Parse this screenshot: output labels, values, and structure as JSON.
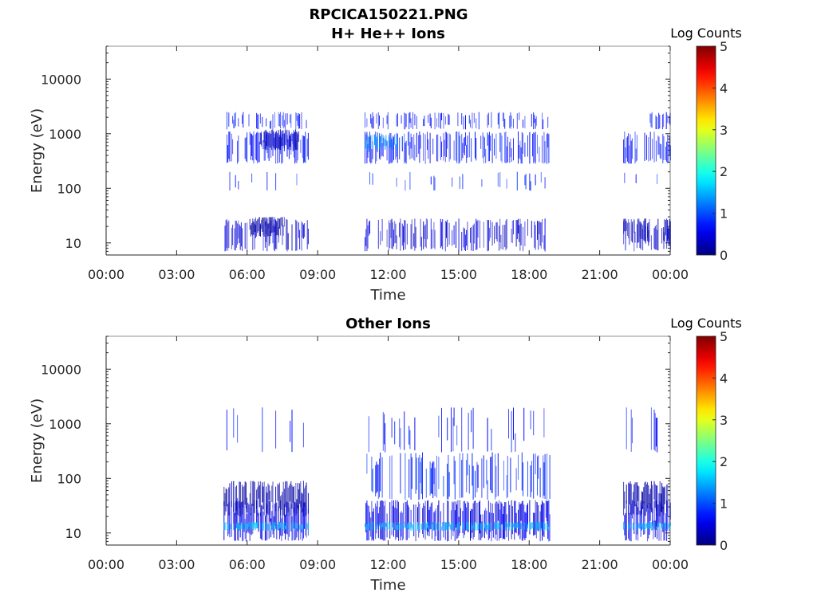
{
  "figure_title": "RPCICA150221.PNG",
  "chart_data": [
    {
      "type": "heatmap",
      "title": "H+ He++ Ions",
      "xlabel": "Time",
      "ylabel": "Energy (eV)",
      "x_ticks": [
        "00:00",
        "03:00",
        "06:00",
        "09:00",
        "12:00",
        "15:00",
        "18:00",
        "21:00",
        "00:00"
      ],
      "x_range_hours": [
        0,
        24
      ],
      "y_scale": "log",
      "y_ticks": [
        "10",
        "100",
        "1000",
        "10000"
      ],
      "y_range": [
        6,
        40000
      ],
      "colorbar": {
        "label": "Log Counts",
        "ticks": [
          "0",
          "1",
          "2",
          "3",
          "4",
          "5"
        ],
        "range": [
          0,
          5
        ],
        "colormap": "jet"
      },
      "data_intervals_hours": [
        [
          5.0,
          8.6
        ],
        [
          11.0,
          18.9
        ],
        [
          22.0,
          24.0
        ]
      ],
      "bands": [
        {
          "intervals": [
            [
              5.0,
              8.6
            ],
            [
              11.0,
              18.9
            ],
            [
              22.0,
              24.0
            ]
          ],
          "energy_eV": [
            7,
            28
          ],
          "log_counts": 0.4,
          "density": 0.55
        },
        {
          "intervals": [
            [
              6.1,
              7.6
            ]
          ],
          "energy_eV": [
            13,
            30
          ],
          "log_counts": 0.15,
          "density": 0.95
        },
        {
          "intervals": [
            [
              22.0,
              23.1
            ],
            [
              23.7,
              24.0
            ]
          ],
          "energy_eV": [
            10,
            28
          ],
          "log_counts": 0.2,
          "density": 0.8
        },
        {
          "intervals": [
            [
              5.0,
              8.6
            ],
            [
              11.0,
              18.9
            ],
            [
              22.0,
              24.0
            ]
          ],
          "energy_eV": [
            280,
            1100
          ],
          "log_counts": 0.7,
          "density": 0.65
        },
        {
          "intervals": [
            [
              6.5,
              8.2
            ]
          ],
          "energy_eV": [
            500,
            1200
          ],
          "log_counts": 0.3,
          "density": 0.95
        },
        {
          "intervals": [
            [
              11.0,
              12.6
            ]
          ],
          "energy_eV": [
            500,
            1000
          ],
          "log_counts": 1.3,
          "density": 0.7
        },
        {
          "intervals": [
            [
              5.0,
              8.6
            ],
            [
              11.0,
              18.9
            ],
            [
              22.8,
              24.0
            ]
          ],
          "energy_eV": [
            1200,
            2500
          ],
          "log_counts": 0.7,
          "density": 0.35
        },
        {
          "intervals": [
            [
              5.0,
              8.6
            ],
            [
              11.0,
              18.9
            ],
            [
              22.0,
              24.0
            ]
          ],
          "energy_eV": [
            90,
            200
          ],
          "log_counts": 0.8,
          "density": 0.1
        }
      ]
    },
    {
      "type": "heatmap",
      "title": "Other Ions",
      "xlabel": "Time",
      "ylabel": "Energy (eV)",
      "x_ticks": [
        "00:00",
        "03:00",
        "06:00",
        "09:00",
        "12:00",
        "15:00",
        "18:00",
        "21:00",
        "00:00"
      ],
      "x_range_hours": [
        0,
        24
      ],
      "y_scale": "log",
      "y_ticks": [
        "10",
        "100",
        "1000",
        "10000"
      ],
      "y_range": [
        6,
        40000
      ],
      "colorbar": {
        "label": "Log Counts",
        "ticks": [
          "0",
          "1",
          "2",
          "3",
          "4",
          "5"
        ],
        "range": [
          0,
          5
        ],
        "colormap": "jet"
      },
      "data_intervals_hours": [
        [
          5.0,
          8.6
        ],
        [
          11.0,
          18.9
        ],
        [
          22.0,
          24.0
        ]
      ],
      "bands": [
        {
          "intervals": [
            [
              5.0,
              8.6
            ],
            [
              11.0,
              18.9
            ],
            [
              22.0,
              24.0
            ]
          ],
          "energy_eV": [
            7,
            40
          ],
          "log_counts": 0.5,
          "density": 0.75
        },
        {
          "intervals": [
            [
              5.0,
              8.6
            ],
            [
              11.0,
              18.9
            ],
            [
              22.0,
              24.0
            ]
          ],
          "energy_eV": [
            11,
            16
          ],
          "log_counts": 1.5,
          "density": 0.7
        },
        {
          "intervals": [
            [
              5.0,
              8.6
            ],
            [
              22.0,
              24.0
            ]
          ],
          "energy_eV": [
            20,
            90
          ],
          "log_counts": 0.2,
          "density": 0.85
        },
        {
          "intervals": [
            [
              11.0,
              18.9
            ]
          ],
          "energy_eV": [
            40,
            300
          ],
          "log_counts": 0.8,
          "density": 0.35
        },
        {
          "intervals": [
            [
              5.0,
              8.6
            ],
            [
              11.0,
              18.9
            ],
            [
              22.0,
              23.5
            ]
          ],
          "energy_eV": [
            300,
            2000
          ],
          "log_counts": 0.7,
          "density": 0.15
        }
      ]
    }
  ]
}
